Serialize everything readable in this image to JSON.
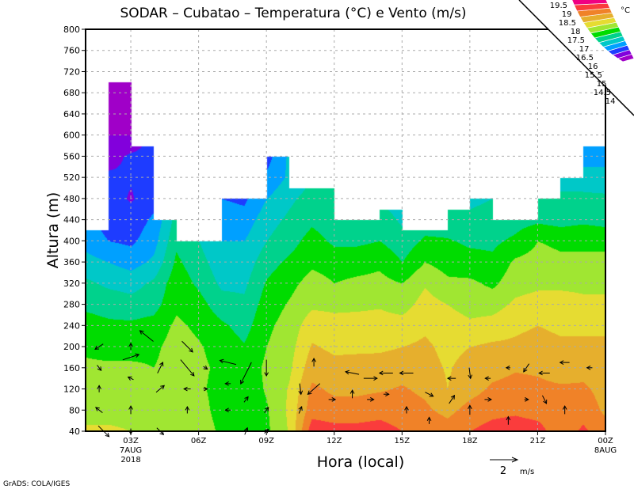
{
  "chart_data": {
    "type": "heatmap",
    "subtype": "filled-contour-with-wind-vectors",
    "title": "SODAR – Cubatao – Temperatura (°C) e Vento (m/s)",
    "xlabel": "Hora (local)",
    "ylabel": "Altura (m)",
    "ylim": [
      40,
      800
    ],
    "yticks": [
      40,
      80,
      120,
      160,
      200,
      240,
      280,
      320,
      360,
      400,
      440,
      480,
      520,
      560,
      600,
      640,
      680,
      720,
      760,
      800
    ],
    "xlim_hours": [
      1,
      24
    ],
    "xticks": [
      {
        "hour": 3,
        "label": "03Z",
        "sub1": "7AUG",
        "sub2": "2018"
      },
      {
        "hour": 6,
        "label": "06Z"
      },
      {
        "hour": 9,
        "label": "09Z"
      },
      {
        "hour": 12,
        "label": "12Z"
      },
      {
        "hour": 15,
        "label": "15Z"
      },
      {
        "hour": 18,
        "label": "18Z"
      },
      {
        "hour": 21,
        "label": "21Z"
      },
      {
        "hour": 24,
        "label": "00Z",
        "sub1": "8AUG"
      }
    ],
    "grid": true,
    "colorbar": {
      "unit": "°C",
      "levels": [
        14,
        14.5,
        15,
        15.5,
        16,
        16.5,
        17,
        17.5,
        18,
        18.5,
        19,
        19.5
      ],
      "labels": [
        "14",
        "14.5",
        "15",
        "15.5",
        "16",
        "16.5",
        "17",
        "17.5",
        "18",
        "18.5",
        "19",
        "19.5"
      ],
      "colors": [
        "#a000c8",
        "#8200dc",
        "#1e3cff",
        "#00a0ff",
        "#00c8c8",
        "#00d28c",
        "#00dc00",
        "#a0e632",
        "#e6dc32",
        "#e6af2d",
        "#f08228",
        "#fa3c3c",
        "#f00082"
      ]
    },
    "heights": [
      40,
      80,
      120,
      160,
      200,
      240,
      280,
      320,
      360,
      400,
      440,
      480,
      520,
      560,
      600,
      640,
      680,
      720
    ],
    "hours": [
      1,
      2,
      3,
      4,
      5,
      6,
      7,
      8,
      9,
      10,
      11,
      12,
      13,
      14,
      15,
      16,
      17,
      18,
      19,
      20,
      21,
      22,
      23,
      24
    ],
    "data_top_per_hour_segment": [
      420,
      700,
      580,
      440,
      400,
      400,
      480,
      480,
      560,
      500,
      500,
      440,
      440,
      460,
      420,
      420,
      460,
      480,
      440,
      440,
      480,
      520,
      580
    ],
    "temperature": [
      [
        17.6,
        17.3,
        17.2,
        17.1,
        16.9,
        16.7,
        16.4,
        16.1,
        15.7,
        15.3,
        15.1
      ],
      [
        17.6,
        17.3,
        17.2,
        17.1,
        16.8,
        16.6,
        16.3,
        15.9,
        15.5,
        15.0,
        14.8,
        14.7,
        14.6,
        14.3,
        14.0,
        13.8,
        13.8,
        13.8
      ],
      [
        17.5,
        17.3,
        17.2,
        17.1,
        16.8,
        16.6,
        16.2,
        15.8,
        15.3,
        14.9,
        14.7,
        14.45,
        14.55,
        14.6,
        14.0,
        13.9,
        13.9,
        13.9
      ],
      [
        17.3,
        17.2,
        17.1,
        17.0,
        16.9,
        16.7,
        16.3,
        16.1,
        15.6,
        15.3,
        15.1,
        14.8,
        14.7,
        14.7
      ],
      [
        17.3,
        17.2,
        17.1,
        17.2,
        17.2,
        17.1,
        16.9,
        16.8,
        16.6,
        16.4,
        16.2
      ],
      [
        17.3,
        17.2,
        17.1,
        17.1,
        17.05,
        16.9,
        16.7,
        16.4,
        16.2,
        16.0,
        15.8
      ],
      [
        16.9,
        16.8,
        16.8,
        16.9,
        16.8,
        16.6,
        16.2,
        15.9,
        15.7,
        15.5,
        15.3,
        15.0
      ],
      [
        16.9,
        16.8,
        16.7,
        16.7,
        16.55,
        16.3,
        16.1,
        15.9,
        15.7,
        15.5,
        15.2,
        14.9,
        14.8,
        14.7
      ],
      [
        16.9,
        16.95,
        17.05,
        17.1,
        17.0,
        16.9,
        16.75,
        16.55,
        16.3,
        16.0,
        15.8,
        15.5,
        15.1,
        14.8
      ],
      [
        17.55,
        17.6,
        17.55,
        17.4,
        17.3,
        17.2,
        17.05,
        16.85,
        16.6,
        16.3,
        16.1,
        15.9,
        15.6
      ],
      [
        19.3,
        18.8,
        18.6,
        18.3,
        18.05,
        17.8,
        17.4,
        17.2,
        16.9,
        16.7,
        16.4,
        16.2,
        16.0
      ],
      [
        19.2,
        18.7,
        18.4,
        18.15,
        17.9,
        17.65,
        17.4,
        17.0,
        16.8,
        16.4,
        16.2
      ],
      [
        19.2,
        18.7,
        18.4,
        18.2,
        17.9,
        17.7,
        17.4,
        17.1,
        16.8,
        16.4,
        16.2,
        16.0
      ],
      [
        19.25,
        18.8,
        18.45,
        18.25,
        17.9,
        17.7,
        17.45,
        17.15,
        16.9,
        16.5,
        16.3,
        15.9
      ],
      [
        19.0,
        18.7,
        18.55,
        18.3,
        18.0,
        17.7,
        17.3,
        17.0,
        16.5,
        16.2,
        15.9,
        15.7
      ],
      [
        18.9,
        18.6,
        18.4,
        18.2,
        18.1,
        17.9,
        17.7,
        17.45,
        17.0,
        16.6,
        16.2
      ],
      [
        18.75,
        18.35,
        18.0,
        17.95,
        17.85,
        17.75,
        17.5,
        17.1,
        16.8,
        16.55,
        16.2,
        16.0
      ],
      [
        19.0,
        18.7,
        18.3,
        18.2,
        18.0,
        17.6,
        17.3,
        17.1,
        16.7,
        16.4,
        16.1,
        15.9
      ],
      [
        19.2,
        18.85,
        18.6,
        18.3,
        18.1,
        17.7,
        17.3,
        16.9,
        16.6,
        16.4,
        16.2,
        16.0
      ],
      [
        19.3,
        18.9,
        18.7,
        18.45,
        18.1,
        17.9,
        17.6,
        17.3,
        17.1,
        16.6,
        16.3
      ],
      [
        19.2,
        18.8,
        18.65,
        18.4,
        18.2,
        18.0,
        17.7,
        17.4,
        17.2,
        17.0,
        16.4,
        16.1
      ],
      [
        18.7,
        18.6,
        18.6,
        18.2,
        18.1,
        17.9,
        17.7,
        17.4,
        17.1,
        16.9,
        16.3,
        16.1,
        15.8
      ],
      [
        19.1,
        18.8,
        18.6,
        18.3,
        18.1,
        17.9,
        17.6,
        17.4,
        17.1,
        16.9,
        16.4,
        16.1,
        15.8,
        15.2
      ],
      [
        18.7,
        18.4,
        18.3,
        18.2,
        18.1,
        17.9,
        17.6,
        17.4,
        17.1,
        16.9,
        16.3,
        16.1,
        15.7,
        15.3
      ]
    ],
    "wind_vectors_hour_height_u_v": [
      [
        1.6,
        200,
        -0.6,
        -0.4
      ],
      [
        1.6,
        160,
        0.3,
        -0.4
      ],
      [
        1.6,
        120,
        0,
        0.5
      ],
      [
        1.6,
        80,
        -0.5,
        0.4
      ],
      [
        1.8,
        40,
        0.8,
        -0.8
      ],
      [
        3,
        200,
        0,
        0.5
      ],
      [
        3,
        180,
        1.2,
        0.4
      ],
      [
        3,
        140,
        -0.4,
        0.2
      ],
      [
        3,
        80,
        0,
        0.6
      ],
      [
        3,
        40,
        0,
        -0.4
      ],
      [
        3.7,
        220,
        -1.0,
        0.8
      ],
      [
        4.3,
        160,
        0.4,
        0.8
      ],
      [
        4.3,
        120,
        0.6,
        0.5
      ],
      [
        4.3,
        40,
        0.5,
        -0.5
      ],
      [
        5.5,
        200,
        0.8,
        -0.8
      ],
      [
        5.5,
        160,
        1.0,
        -1.2
      ],
      [
        5.5,
        120,
        -0.5,
        0
      ],
      [
        5.5,
        80,
        0,
        0.5
      ],
      [
        6.3,
        120,
        0.3,
        0
      ],
      [
        6.3,
        160,
        0.3,
        -0.2
      ],
      [
        7.3,
        170,
        -1.2,
        0.3
      ],
      [
        7.3,
        130,
        -0.4,
        0
      ],
      [
        7.3,
        80,
        -0.4,
        0
      ],
      [
        8.1,
        150,
        -0.8,
        -1.6
      ],
      [
        8.1,
        100,
        0.3,
        0.4
      ],
      [
        8.1,
        40,
        0.2,
        0.5
      ],
      [
        9,
        160,
        0,
        -1.2
      ],
      [
        9,
        80,
        0.3,
        0.4
      ],
      [
        9,
        40,
        0.3,
        0.3
      ],
      [
        10.5,
        120,
        0.1,
        -0.8
      ],
      [
        10.5,
        80,
        0.2,
        0.5
      ],
      [
        11.1,
        170,
        0,
        0.6
      ],
      [
        11.1,
        120,
        -0.9,
        -0.8
      ],
      [
        11.9,
        100,
        0.5,
        0
      ],
      [
        12.8,
        150,
        -1.0,
        0.2
      ],
      [
        12.8,
        110,
        0,
        0.6
      ],
      [
        13.6,
        140,
        1.0,
        0
      ],
      [
        13.6,
        100,
        0.5,
        0
      ],
      [
        14.3,
        150,
        -1.0,
        0
      ],
      [
        14.3,
        110,
        0.4,
        0
      ],
      [
        15.2,
        150,
        -1.0,
        0
      ],
      [
        15.2,
        80,
        0,
        0.5
      ],
      [
        16.2,
        110,
        0.6,
        -0.3
      ],
      [
        16.2,
        60,
        0,
        0.5
      ],
      [
        17.2,
        140,
        -0.6,
        0
      ],
      [
        17.2,
        100,
        0.4,
        0.6
      ],
      [
        18,
        150,
        0.1,
        -0.8
      ],
      [
        18,
        80,
        0,
        0.7
      ],
      [
        18.8,
        140,
        -0.4,
        0
      ],
      [
        18.8,
        100,
        0.5,
        0
      ],
      [
        19.7,
        160,
        -0.3,
        0
      ],
      [
        19.7,
        60,
        0,
        0.6
      ],
      [
        20.5,
        160,
        -0.4,
        -0.6
      ],
      [
        20.5,
        100,
        0.3,
        0
      ],
      [
        21.3,
        150,
        -0.8,
        0
      ],
      [
        21.3,
        100,
        0.3,
        -0.6
      ],
      [
        22.2,
        170,
        -0.7,
        0
      ],
      [
        22.2,
        80,
        0,
        0.6
      ],
      [
        23.3,
        160,
        -0.4,
        0
      ]
    ],
    "reference_vector": {
      "value": "2",
      "unit": "m/s"
    }
  },
  "footer": {
    "credit": "GrADS: COLA/IGES"
  }
}
